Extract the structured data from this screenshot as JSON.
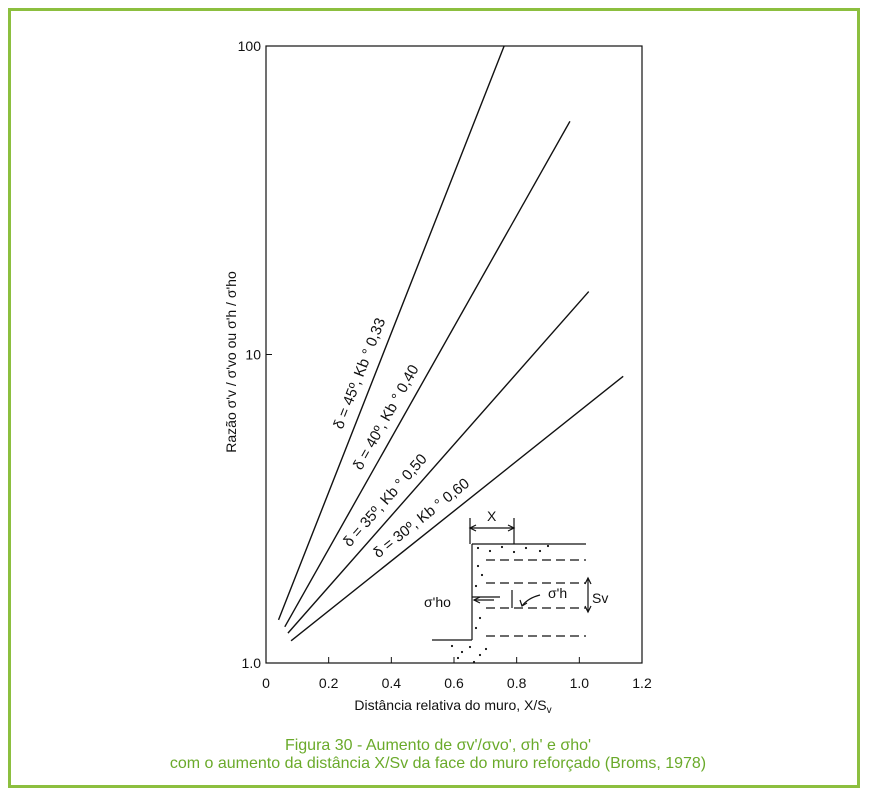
{
  "chart_data": {
    "type": "line",
    "y_scale": "log",
    "grid": false,
    "xlim": [
      0,
      1.2
    ],
    "ylim": [
      1,
      100
    ],
    "x_ticks": [
      "0",
      "0.2",
      "0.4",
      "0.6",
      "0.8",
      "1.0",
      "1.2"
    ],
    "y_ticks": [
      "1.0",
      "10",
      "100"
    ],
    "xlabel": "Distância relativa do muro, X/Sv",
    "ylabel": "Razão σ'v / σ'vo ou σ'h / σ'ho",
    "series": [
      {
        "name": "δ = 45º, Kb ° 0,33",
        "x": [
          0.04,
          0.76
        ],
        "y": [
          1.38,
          100
        ]
      },
      {
        "name": "δ = 40º, Kb ° 0,40",
        "x": [
          0.06,
          0.97
        ],
        "y": [
          1.31,
          57
        ]
      },
      {
        "name": "δ = 35º, Kb ° 0,50",
        "x": [
          0.07,
          1.03
        ],
        "y": [
          1.25,
          16
        ]
      },
      {
        "name": "δ = 30º, Kb ° 0,60",
        "x": [
          0.08,
          1.14
        ],
        "y": [
          1.18,
          8.5
        ]
      }
    ],
    "inset_labels": {
      "x": "X",
      "sigma_ho": "σ'ho",
      "sigma_h": "σ'h",
      "sv": "Sv"
    }
  },
  "caption": {
    "line1": "Figura 30 - Aumento de σv'/σvo', σh' e σho'",
    "line2": "com o aumento da distância X/Sv da face do muro reforçado (Broms, 1978)"
  },
  "colors": {
    "border": "#8cbf3f",
    "caption": "#6aaa2a",
    "ink": "#111111"
  }
}
